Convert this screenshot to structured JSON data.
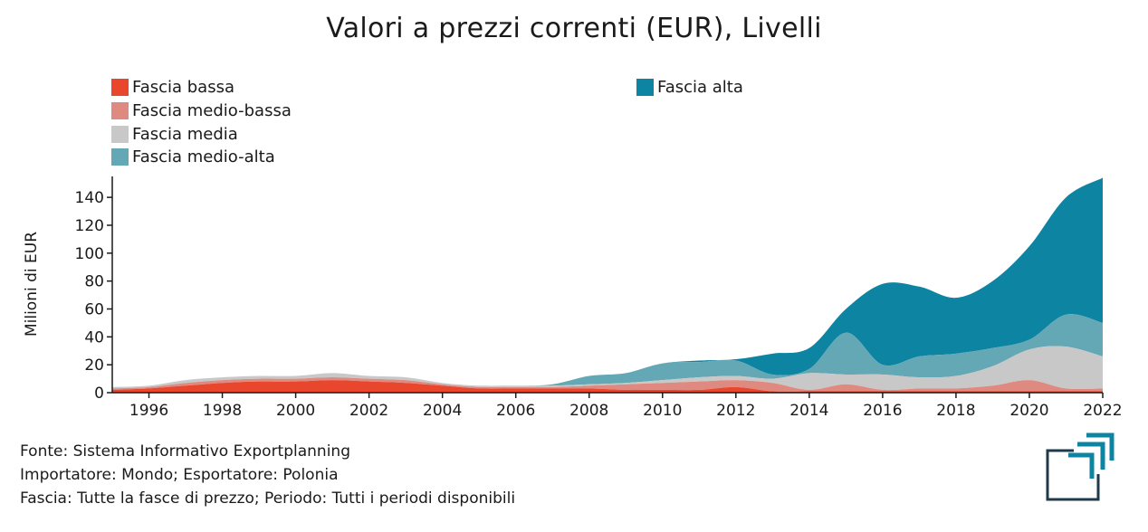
{
  "chart_data": {
    "type": "area",
    "stacked": true,
    "smooth": true,
    "title": "Valori a prezzi correnti (EUR), Livelli",
    "xlabel": "",
    "ylabel": "Milioni di EUR",
    "xlim": [
      1995,
      2022
    ],
    "ylim": [
      0,
      155
    ],
    "x_ticks": [
      "1996",
      "1998",
      "2000",
      "2002",
      "2004",
      "2006",
      "2008",
      "2010",
      "2012",
      "2014",
      "2016",
      "2018",
      "2020",
      "2022"
    ],
    "y_ticks": [
      "0",
      "20",
      "40",
      "60",
      "80",
      "100",
      "120",
      "140"
    ],
    "grid": false,
    "legend_position": "top-left",
    "x": [
      1995,
      1996,
      1997,
      1998,
      1999,
      2000,
      2001,
      2002,
      2003,
      2004,
      2005,
      2006,
      2007,
      2008,
      2009,
      2010,
      2011,
      2012,
      2013,
      2014,
      2015,
      2016,
      2017,
      2018,
      2019,
      2020,
      2021,
      2022
    ],
    "series": [
      {
        "name": "Fascia bassa",
        "color": "#e8472e",
        "values": [
          2,
          3,
          5,
          7,
          8,
          8,
          9,
          8,
          7,
          5,
          3,
          3,
          3,
          3,
          2,
          2,
          2,
          4,
          1,
          1,
          1,
          1,
          1,
          1,
          1,
          1,
          1,
          1
        ]
      },
      {
        "name": "Fascia medio-bassa",
        "color": "#df8a80",
        "values": [
          1,
          1,
          2,
          2,
          2,
          2,
          2,
          2,
          2,
          1,
          1,
          1,
          1,
          2,
          4,
          5,
          6,
          5,
          6,
          1,
          5,
          1,
          2,
          2,
          4,
          8,
          2,
          2
        ]
      },
      {
        "name": "Fascia media",
        "color": "#c8c8c8",
        "values": [
          1,
          1,
          2,
          2,
          2,
          2,
          3,
          2,
          2,
          1,
          1,
          1,
          1,
          1,
          1,
          2,
          3,
          3,
          3,
          12,
          7,
          11,
          8,
          9,
          14,
          22,
          30,
          23
        ]
      },
      {
        "name": "Fascia medio-alta",
        "color": "#64a7b5",
        "values": [
          0,
          0,
          0,
          0,
          0,
          0,
          0,
          0,
          0,
          0,
          0,
          0,
          1,
          6,
          7,
          12,
          11,
          11,
          3,
          3,
          30,
          7,
          15,
          16,
          13,
          7,
          23,
          24
        ]
      },
      {
        "name": "Fascia alta",
        "color": "#0d84a1",
        "values": [
          0,
          0,
          0,
          0,
          0,
          0,
          0,
          0,
          0,
          0,
          0,
          0,
          0,
          0,
          0,
          0,
          1,
          1,
          15,
          15,
          17,
          58,
          50,
          40,
          48,
          67,
          84,
          104
        ]
      }
    ]
  },
  "legend": {
    "items": [
      {
        "label": "Fascia bassa",
        "color": "#e8472e"
      },
      {
        "label": "Fascia medio-bassa",
        "color": "#df8a80"
      },
      {
        "label": "Fascia media",
        "color": "#c8c8c8"
      },
      {
        "label": "Fascia medio-alta",
        "color": "#64a7b5"
      },
      {
        "label": "Fascia alta",
        "color": "#0d84a1"
      }
    ]
  },
  "footer": {
    "line1": "Fonte: Sistema Informativo Exportplanning",
    "line2": "Importatore: Mondo; Esportatore: Polonia",
    "line3": "Fascia: Tutte la fasce di prezzo; Periodo: Tutti i periodi disponibili"
  },
  "logo": {
    "icon": "exportplanning-logo-icon",
    "color": "#0d84a1",
    "frame_color": "#1f3a4a"
  }
}
